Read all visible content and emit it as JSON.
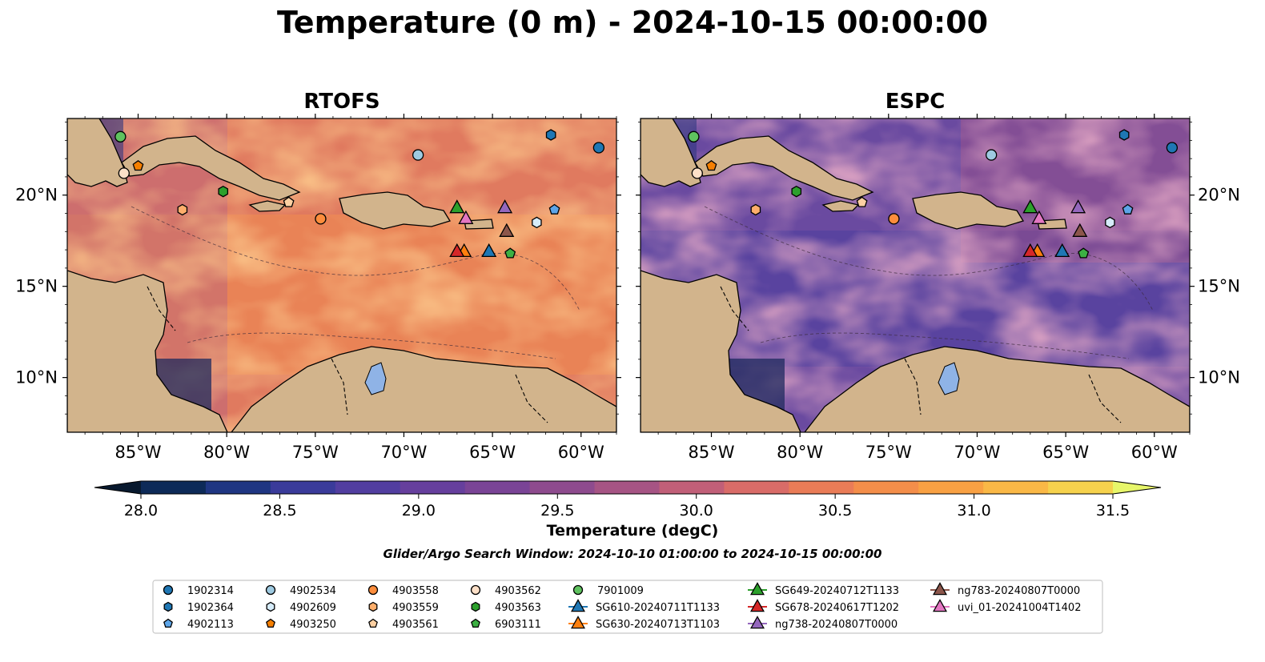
{
  "title": "Temperature (0 m) - 2024-10-15 00:00:00",
  "panels": [
    {
      "title": "RTOFS",
      "scheme": "warm"
    },
    {
      "title": "ESPC",
      "scheme": "cool"
    }
  ],
  "lon_ticks": [
    "85°W",
    "80°W",
    "75°W",
    "70°W",
    "65°W",
    "60°W"
  ],
  "lat_ticks": [
    "20°N",
    "15°N",
    "10°N"
  ],
  "colorbar": {
    "ticks": [
      "28.0",
      "28.5",
      "29.0",
      "29.5",
      "30.0",
      "30.5",
      "31.0",
      "31.5"
    ],
    "label": "Temperature (degC)",
    "colors": [
      "#0d2a58",
      "#1f3682",
      "#3a3b9a",
      "#523ea0",
      "#663f9d",
      "#7a4496",
      "#8e4b8e",
      "#a65484",
      "#c15f78",
      "#d96c68",
      "#ea7c57",
      "#f48e4a",
      "#f9a143",
      "#fab846",
      "#f6d24d"
    ],
    "min_color": "#08192e",
    "max_color": "#e7f66a"
  },
  "search_window": "Glider/Argo Search Window: 2024-10-10 01:00:00 to 2024-10-15 00:00:00",
  "legend": [
    {
      "label": "1902314",
      "shape": "circle",
      "color": "#1f77b4",
      "lon": -59,
      "lat": 22.6
    },
    {
      "label": "1902364",
      "shape": "hexagon",
      "color": "#1f77b4",
      "lon": -61.7,
      "lat": 23.3
    },
    {
      "label": "4902113",
      "shape": "pentagon",
      "color": "#5da5e8",
      "lon": -61.5,
      "lat": 19.2
    },
    {
      "label": "4902534",
      "shape": "circle",
      "color": "#9ecae1",
      "lon": -69.2,
      "lat": 22.2
    },
    {
      "label": "4902609",
      "shape": "hexagon",
      "color": "#d6ecfa",
      "lon": -62.5,
      "lat": 18.5
    },
    {
      "label": "4903250",
      "shape": "pentagon",
      "color": "#f57f00",
      "lon": -85.0,
      "lat": 21.6
    },
    {
      "label": "4903558",
      "shape": "circle",
      "color": "#fd8d3c",
      "lon": -74.7,
      "lat": 18.7
    },
    {
      "label": "4903559",
      "shape": "hexagon",
      "color": "#fdae6b",
      "lon": -82.5,
      "lat": 19.2
    },
    {
      "label": "4903561",
      "shape": "pentagon",
      "color": "#fdd0a2",
      "lon": -76.5,
      "lat": 19.6
    },
    {
      "label": "4903562",
      "shape": "circle",
      "color": "#fde0c8",
      "lon": -85.8,
      "lat": 21.2
    },
    {
      "label": "4903563",
      "shape": "hexagon",
      "color": "#2ca02c",
      "lon": -80.2,
      "lat": 20.2
    },
    {
      "label": "6903111",
      "shape": "pentagon",
      "color": "#3cb043",
      "lon": -64.0,
      "lat": 16.8
    },
    {
      "label": "7901009",
      "shape": "circle",
      "color": "#5fc25f",
      "lon": -86.0,
      "lat": 23.2
    },
    {
      "label": "SG610-20240711T1133",
      "shape": "triangle",
      "color": "#1f77b4",
      "lon": -65.2,
      "lat": 16.9
    },
    {
      "label": "SG630-20240713T1103",
      "shape": "triangle",
      "color": "#ff7f0e",
      "lon": -66.6,
      "lat": 16.9
    },
    {
      "label": "SG649-20240712T1133",
      "shape": "triangle",
      "color": "#2ca02c",
      "lon": -67.0,
      "lat": 19.3
    },
    {
      "label": "SG678-20240617T1202",
      "shape": "triangle",
      "color": "#d62728",
      "lon": -67.0,
      "lat": 16.9
    },
    {
      "label": "ng738-20240807T0000",
      "shape": "triangle",
      "color": "#9467bd",
      "lon": -64.3,
      "lat": 19.3
    },
    {
      "label": "ng783-20240807T0000",
      "shape": "triangle",
      "color": "#8c564b",
      "lon": -64.2,
      "lat": 18.0
    },
    {
      "label": "uvi_01-20241004T1402",
      "shape": "triangle",
      "color": "#e377c2",
      "lon": -66.5,
      "lat": 18.7
    }
  ]
}
